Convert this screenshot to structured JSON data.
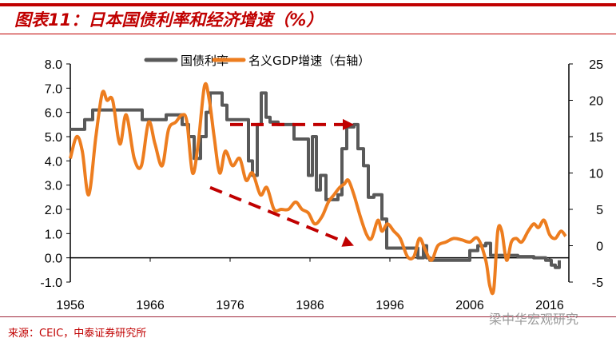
{
  "title": "图表11：日本国债利率和经济增速（%）",
  "source": "来源：CEIC，中泰证券研究所",
  "watermark": "梁中华宏观研究",
  "colors": {
    "brand": "#c00000",
    "bond": "#595959",
    "gdp": "#ed7d1f",
    "annotation": "#c00000"
  },
  "chart_data": {
    "type": "line",
    "title": "图表11：日本国债利率和经济增速（%）",
    "xlabel": "",
    "ylabel": "",
    "x_ticks": [
      "1956",
      "1966",
      "1976",
      "1986",
      "1996",
      "2006",
      "2016"
    ],
    "xlim": [
      1956,
      2018.4
    ],
    "y_left": {
      "lim": [
        -1,
        8
      ],
      "ticks": [
        "-1.0",
        "0.0",
        "1.0",
        "2.0",
        "3.0",
        "4.0",
        "5.0",
        "6.0",
        "7.0",
        "8.0"
      ]
    },
    "y_right": {
      "lim": [
        -5,
        25
      ],
      "ticks": [
        "-5",
        "0",
        "5",
        "10",
        "15",
        "20",
        "25"
      ]
    },
    "legend": "top",
    "grid": false,
    "series": [
      {
        "name": "国债利率",
        "axis": "left",
        "style": "step",
        "x": [
          1956,
          1957.8,
          1958.8,
          1965,
          1968,
          1970,
          1970.8,
          1971.5,
          1972.3,
          1973,
          1973.5,
          1975,
          1975.6,
          1978.3,
          1978.8,
          1979.4,
          1979.9,
          1980.5,
          1981,
          1982,
          1984,
          1985.8,
          1986.3,
          1986.8,
          1987.3,
          1988,
          1989.5,
          1990,
          1990.6,
          1991.5,
          1992,
          1992.7,
          1993.3,
          1994,
          1995,
          1995.6,
          1997.5,
          1999.5,
          2000.2,
          2000.6,
          2001,
          2005.5,
          2006,
          2007,
          2008,
          2008.6,
          2010,
          2012,
          2014,
          2015.5,
          2016.2,
          2016.7,
          2017.2
        ],
        "y": [
          5.3,
          5.7,
          6.1,
          5.7,
          5.9,
          5.5,
          5.0,
          4.1,
          5.0,
          6.0,
          6.8,
          6.3,
          5.7,
          4.0,
          3.4,
          5.5,
          6.8,
          5.8,
          5.6,
          5.5,
          4.9,
          3.4,
          5.0,
          2.8,
          3.4,
          2.4,
          2.6,
          4.5,
          5.4,
          5.5,
          4.5,
          3.8,
          2.5,
          2.6,
          1.6,
          0.4,
          0.4,
          0.0,
          0.5,
          0.0,
          -0.1,
          -0.1,
          0.3,
          0.5,
          0.6,
          0.1,
          0.1,
          0.05,
          0.0,
          -0.1,
          -0.3,
          -0.4,
          -0.1
        ]
      },
      {
        "name": "名义GDP增速（右轴）",
        "axis": "right",
        "style": "smooth",
        "x": [
          1956,
          1956.8,
          1957.5,
          1958.3,
          1959.2,
          1960,
          1960.6,
          1961.3,
          1962.2,
          1963,
          1964,
          1964.9,
          1965.8,
          1966.6,
          1967.5,
          1968.3,
          1969.2,
          1970,
          1970.6,
          1971.3,
          1972,
          1972.8,
          1973.4,
          1974,
          1974.7,
          1975.4,
          1976.3,
          1977.2,
          1978,
          1978.8,
          1979.8,
          1980.6,
          1981.5,
          1982.4,
          1983.3,
          1984.2,
          1985,
          1985.8,
          1986.6,
          1987.5,
          1988.3,
          1989,
          1989.7,
          1990.3,
          1990.8,
          1991.5,
          1992.3,
          1993.1,
          1993.7,
          1994.5,
          1995,
          1995.7,
          1996.5,
          1997.3,
          1998.2,
          1999,
          1999.7,
          2000.4,
          2001.2,
          2002,
          2003,
          2004,
          2005,
          2006,
          2007,
          2008,
          2008.5,
          2009,
          2009.5,
          2010,
          2010.6,
          2011.2,
          2011.8,
          2012.5,
          2013.3,
          2014,
          2014.6,
          2015.3,
          2016,
          2016.7,
          2017.4,
          2018
        ],
        "y": [
          12,
          15,
          13,
          7,
          15,
          21,
          20,
          20,
          14,
          18,
          12,
          11,
          17,
          14,
          11,
          16,
          17,
          18,
          17,
          10,
          14,
          22,
          20,
          15,
          10,
          13,
          11,
          12,
          9,
          10,
          7,
          8,
          5,
          5,
          5,
          6,
          5,
          4.5,
          3,
          4,
          6,
          7,
          8,
          8.5,
          9,
          7,
          4,
          1.5,
          1,
          3.5,
          2,
          3,
          2,
          1,
          -1.5,
          -1.5,
          1,
          -0.5,
          -2,
          0,
          0.5,
          1,
          0.8,
          0.5,
          1,
          -2,
          -5.5,
          -6,
          2,
          2,
          -2,
          0.5,
          1,
          0.5,
          2,
          3,
          2.5,
          3.5,
          1.5,
          1,
          2,
          1.3
        ]
      }
    ],
    "annotations": [
      {
        "type": "dashed-arrow",
        "axis": "left",
        "from": [
          1976,
          5.5
        ],
        "to": [
          1991.5,
          5.5
        ]
      },
      {
        "type": "dashed-arrow",
        "axis": "left",
        "from": [
          1973.5,
          2.9
        ],
        "to": [
          1991.5,
          0.5
        ]
      }
    ]
  }
}
